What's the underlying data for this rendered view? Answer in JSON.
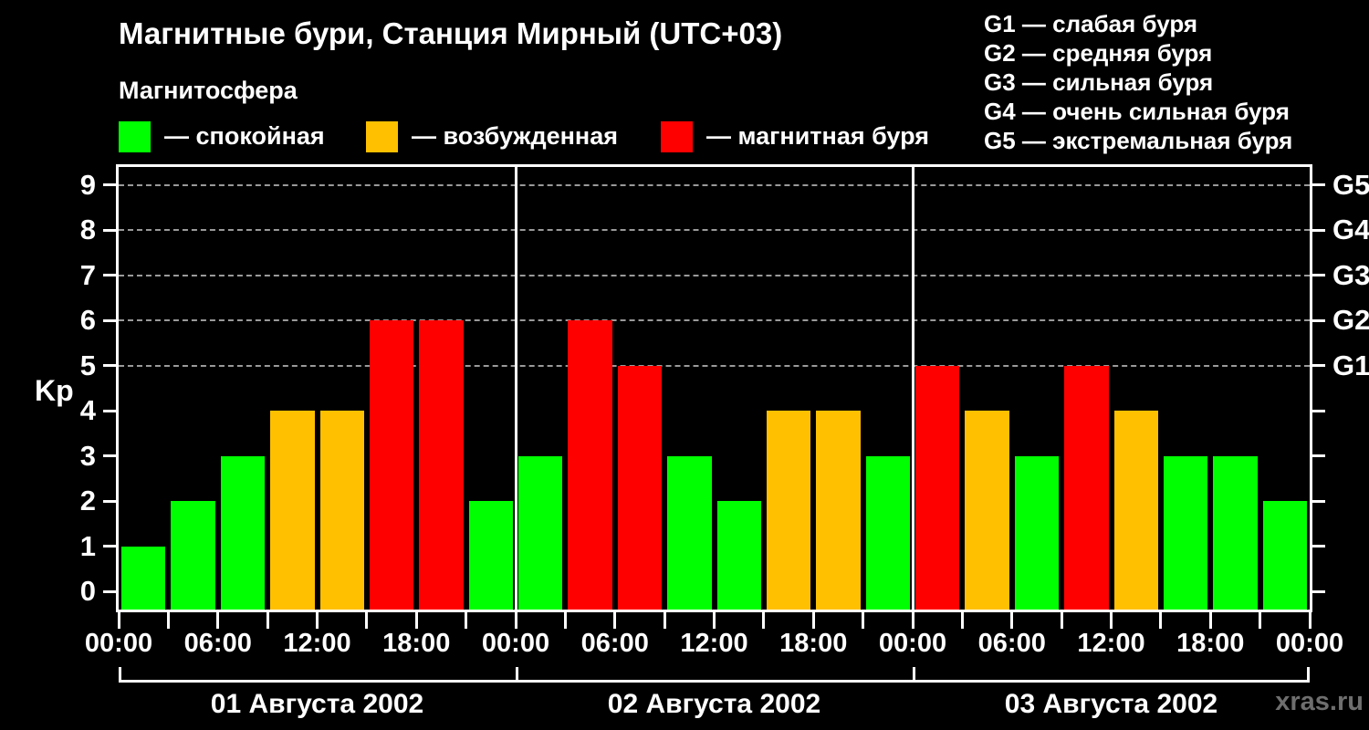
{
  "page": {
    "title": "Магнитные бури, Станция Мирный (UTC+03)",
    "subtitle": "Магнитосфера",
    "watermark": "xras.ru",
    "background_color": "#000000",
    "text_color": "#ffffff"
  },
  "legend": {
    "items": [
      {
        "name": "quiet",
        "color": "#00ff00",
        "label": "— спокойная"
      },
      {
        "name": "excited",
        "color": "#ffc000",
        "label": "— возбужденная"
      },
      {
        "name": "storm",
        "color": "#ff0000",
        "label": "— магнитная буря"
      }
    ]
  },
  "g_legend": {
    "items": [
      "G1 — слабая буря",
      "G2 — средняя буря",
      "G3 — сильная буря",
      "G4 — очень сильная буря",
      "G5 — экстремальная буря"
    ]
  },
  "chart_data": {
    "type": "bar",
    "title": "Магнитные бури, Станция Мирный (UTC+03)",
    "xlabel": "",
    "ylabel": "Kp",
    "ylim": [
      -0.4,
      9.4
    ],
    "y_ticks": [
      0,
      1,
      2,
      3,
      4,
      5,
      6,
      7,
      8,
      9
    ],
    "grid": "dashed horizontal lines only at storm levels",
    "grid_levels": [
      {
        "kp": 5,
        "label": "G1"
      },
      {
        "kp": 6,
        "label": "G2"
      },
      {
        "kp": 7,
        "label": "G3"
      },
      {
        "kp": 8,
        "label": "G4"
      },
      {
        "kp": 9,
        "label": "G5"
      }
    ],
    "bar_interval_hours": 3,
    "time_labels_per_day": [
      "00:00",
      "06:00",
      "12:00",
      "18:00"
    ],
    "axis_end_label": "00:00",
    "colors": {
      "green": "#00ff00",
      "orange": "#ffc000",
      "red": "#ff0000"
    },
    "color_rule": {
      "green_max_kp": 3,
      "orange_kp": 4,
      "red_min_kp": 5
    },
    "days": [
      {
        "label": "01 Августа 2002",
        "kp": [
          1,
          2,
          3,
          4,
          4,
          6,
          6,
          2
        ]
      },
      {
        "label": "02 Августа 2002",
        "kp": [
          3,
          6,
          5,
          3,
          2,
          4,
          4,
          3
        ]
      },
      {
        "label": "03 Августа 2002",
        "kp": [
          5,
          4,
          3,
          5,
          4,
          3,
          3,
          2
        ]
      }
    ]
  }
}
